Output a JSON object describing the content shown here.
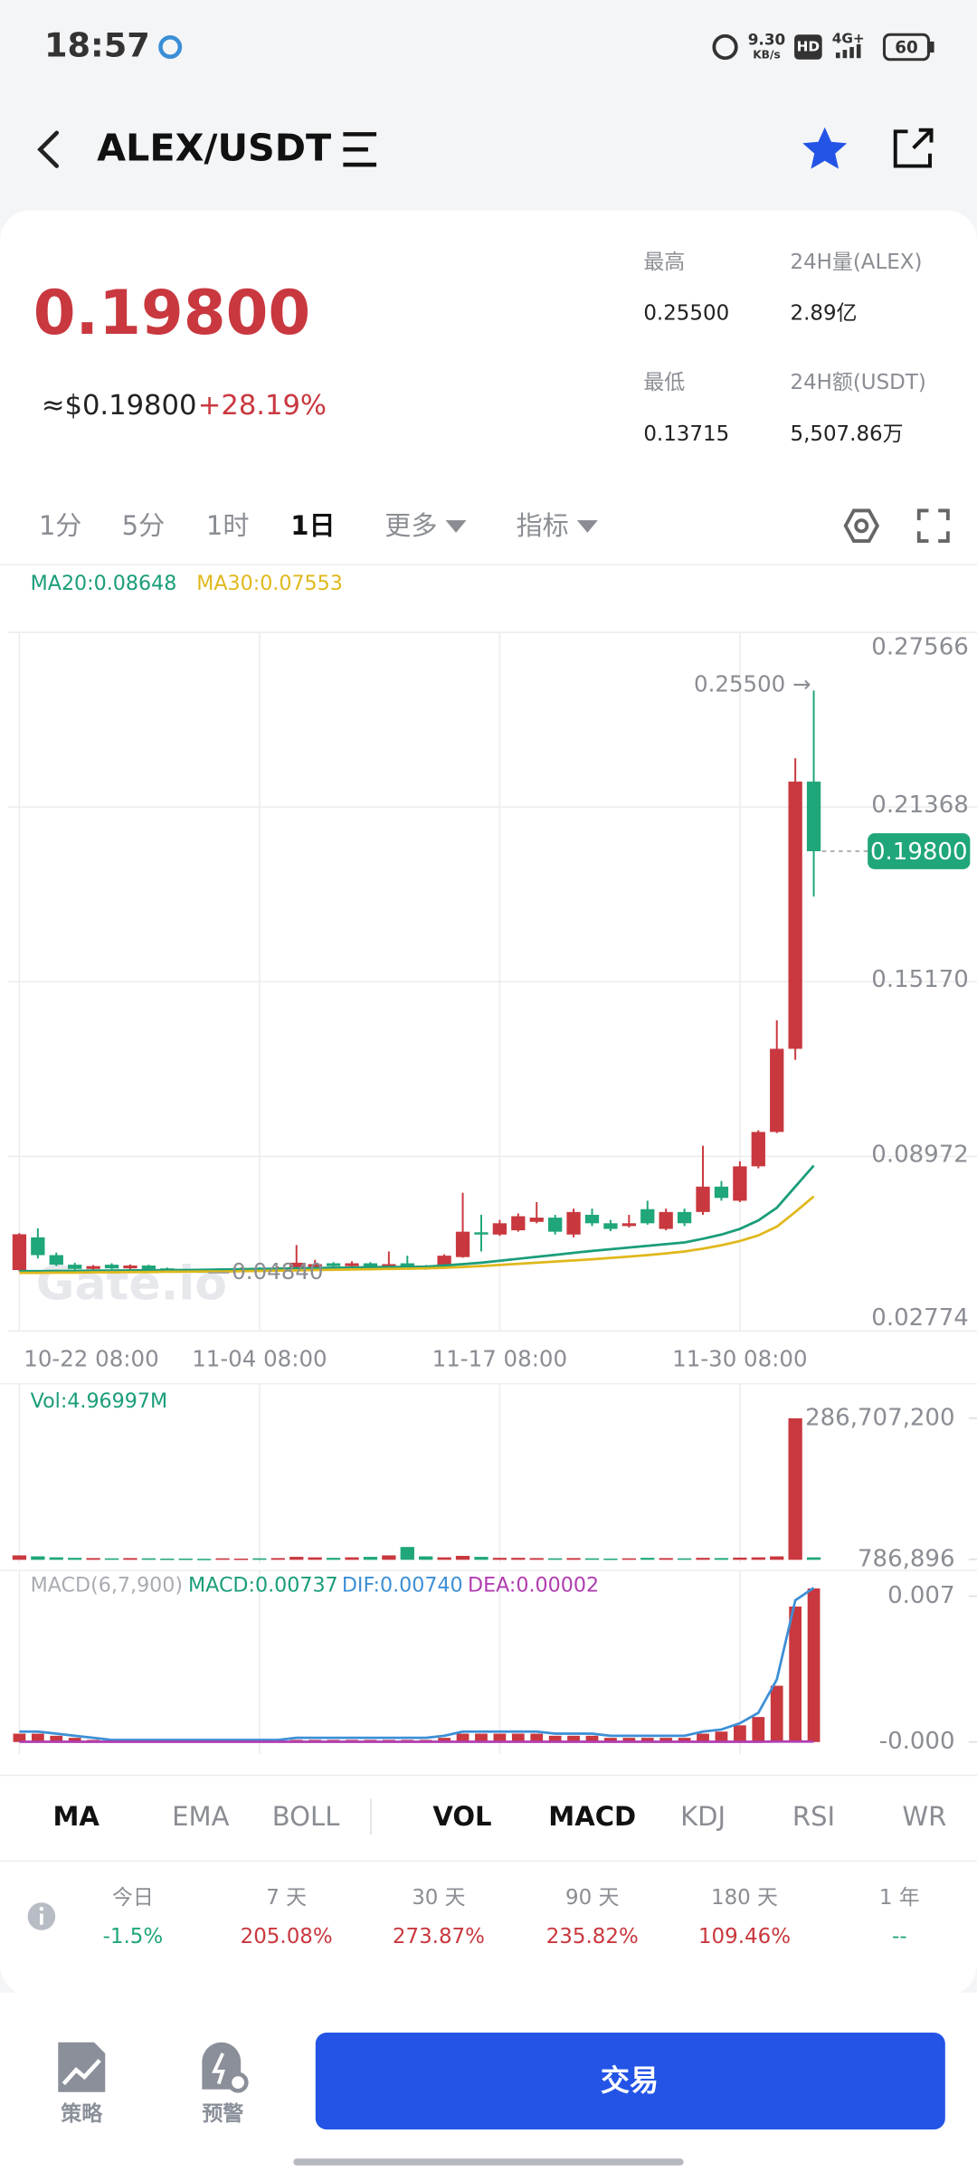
{
  "status_bar": {
    "time": "18:57",
    "speed": "9.30",
    "speed_unit": "KB/s",
    "hd": "HD",
    "network": "4G+",
    "battery": "60"
  },
  "header": {
    "pair": "ALEX/USDT"
  },
  "price": {
    "last": "0.19800",
    "usd": "≈$0.19800",
    "change": "+28.19%"
  },
  "stats": [
    {
      "label": "最高",
      "value": "0.25500"
    },
    {
      "label": "24H量(ALEX)",
      "value": "2.89亿"
    },
    {
      "label": "最低",
      "value": "0.13715"
    },
    {
      "label": "24H额(USDT)",
      "value": "5,507.86万"
    }
  ],
  "intervals": [
    "1分",
    "5分",
    "1时",
    "1日",
    "更多",
    "指标"
  ],
  "active_interval": 3,
  "watermark": "Gate.io",
  "chart_data": [
    {
      "type": "candlestick",
      "categories": [
        "10-22 08:00",
        null,
        null,
        null,
        null,
        null,
        null,
        null,
        null,
        null,
        null,
        null,
        null,
        "11-04 08:00",
        null,
        null,
        null,
        null,
        null,
        null,
        null,
        null,
        null,
        null,
        null,
        null,
        "11-17 08:00",
        null,
        null,
        null,
        null,
        null,
        null,
        null,
        null,
        null,
        null,
        null,
        null,
        "11-30 08:00",
        null,
        null,
        null,
        null
      ],
      "open": [
        0.0494,
        0.061,
        0.0547,
        0.0513,
        0.0498,
        0.0513,
        0.05,
        0.051,
        0.05,
        0.0495,
        0.049,
        0.0484,
        0.049,
        0.05,
        0.0492,
        0.05,
        0.0505,
        0.0518,
        0.0508,
        0.0518,
        0.0505,
        0.0518,
        0.0505,
        0.05,
        0.054,
        0.0628,
        0.062,
        0.0635,
        0.0665,
        0.068,
        0.062,
        0.069,
        0.066,
        0.065,
        0.071,
        0.064,
        0.07,
        0.07,
        0.079,
        0.074,
        0.0862,
        0.0984,
        0.1279,
        0.2227
      ],
      "high": [
        0.0625,
        0.0642,
        0.0556,
        0.052,
        0.0512,
        0.0518,
        0.0514,
        0.0513,
        0.0503,
        0.0498,
        0.0493,
        0.05,
        0.0503,
        0.0504,
        0.0506,
        0.0583,
        0.053,
        0.0522,
        0.0525,
        0.0522,
        0.056,
        0.0545,
        0.0512,
        0.055,
        0.0768,
        0.069,
        0.0672,
        0.0695,
        0.0735,
        0.069,
        0.0712,
        0.0712,
        0.0672,
        0.069,
        0.074,
        0.0712,
        0.0712,
        0.0935,
        0.081,
        0.088,
        0.099,
        0.138,
        0.231,
        0.255
      ],
      "low": [
        0.049,
        0.0535,
        0.0508,
        0.0494,
        0.0494,
        0.0497,
        0.0497,
        0.0492,
        0.0487,
        0.0485,
        0.0484,
        0.0484,
        0.0487,
        0.0489,
        0.049,
        0.0498,
        0.0502,
        0.0505,
        0.0505,
        0.0502,
        0.0502,
        0.05,
        0.0495,
        0.0498,
        0.0538,
        0.056,
        0.0615,
        0.063,
        0.066,
        0.062,
        0.061,
        0.065,
        0.0632,
        0.0645,
        0.0655,
        0.0635,
        0.065,
        0.069,
        0.074,
        0.0735,
        0.0855,
        0.098,
        0.124,
        0.1819
      ],
      "close": [
        0.0621,
        0.0547,
        0.0513,
        0.0498,
        0.0508,
        0.05,
        0.051,
        0.0495,
        0.049,
        0.0486,
        0.0484,
        0.0497,
        0.05,
        0.0492,
        0.0502,
        0.052,
        0.0515,
        0.0508,
        0.0518,
        0.0505,
        0.0515,
        0.0505,
        0.05,
        0.0545,
        0.063,
        0.062,
        0.066,
        0.0685,
        0.068,
        0.063,
        0.07,
        0.066,
        0.064,
        0.066,
        0.066,
        0.07,
        0.066,
        0.079,
        0.075,
        0.0862,
        0.0984,
        0.1279,
        0.2227,
        0.198
      ],
      "up_color": "#c9383f",
      "down_color": "#1fa67a",
      "ylim": [
        0.02774,
        0.27566
      ],
      "yticks": [
        0.27566,
        0.21368,
        {
          "value": 0.1517,
          "label": "0.15170"
        },
        0.08972,
        0.02774
      ],
      "grid": true,
      "series": [
        {
          "name": "MA20:0.08648",
          "color": "#1a9d7a",
          "values": [
            0.049,
            0.049,
            0.0491,
            0.0491,
            0.0492,
            0.0492,
            0.0493,
            0.0493,
            0.0494,
            0.0494,
            0.0495,
            0.0496,
            0.0497,
            0.0498,
            0.0499,
            0.05,
            0.0501,
            0.0502,
            0.0503,
            0.0504,
            0.0505,
            0.0505,
            0.0506,
            0.051,
            0.0515,
            0.052,
            0.0527,
            0.0534,
            0.0541,
            0.0548,
            0.0555,
            0.0562,
            0.0568,
            0.0574,
            0.058,
            0.0586,
            0.0592,
            0.0605,
            0.062,
            0.064,
            0.067,
            0.0715,
            0.079,
            0.08648
          ]
        },
        {
          "name": "MA30:0.07553",
          "color": "#e0b81c",
          "values": [
            0.0484,
            0.0484,
            0.0485,
            0.0485,
            0.0486,
            0.0486,
            0.0487,
            0.0487,
            0.0488,
            0.0488,
            0.0489,
            0.0489,
            0.049,
            0.0491,
            0.0492,
            0.0493,
            0.0494,
            0.0495,
            0.0496,
            0.0497,
            0.0498,
            0.0499,
            0.05,
            0.0502,
            0.0505,
            0.0508,
            0.0512,
            0.0516,
            0.052,
            0.0524,
            0.0528,
            0.0532,
            0.0537,
            0.0542,
            0.0547,
            0.0553,
            0.056,
            0.057,
            0.0582,
            0.0597,
            0.0617,
            0.0648,
            0.07,
            0.07553
          ]
        }
      ],
      "annotations": {
        "high": "0.25500 →",
        "low": "0.04840",
        "last": "0.19800"
      }
    },
    {
      "type": "bar",
      "title": "Vol:4.96997M",
      "title_color": "#1a9d7a",
      "values": [
        9000000,
        7000000,
        5000000,
        4000000,
        3500000,
        3000000,
        3500000,
        3000000,
        2500000,
        2500000,
        2000000,
        3000000,
        2500000,
        3000000,
        3500000,
        6000000,
        5000000,
        4000000,
        5000000,
        6000000,
        9000000,
        26000000,
        7000000,
        5000000,
        8000000,
        6000000,
        4000000,
        4000000,
        3500000,
        3000000,
        3500000,
        3000000,
        2500000,
        3000000,
        4000000,
        3500000,
        3000000,
        4000000,
        3500000,
        4500000,
        5000000,
        7000000,
        286707200,
        4969970
      ],
      "ylim": [
        -7600000,
        348400000
      ],
      "yticks": [
        {
          "value": 286707200,
          "label": "286,707,200"
        },
        {
          "value": 786896,
          "label": "786,896"
        }
      ]
    },
    {
      "type": "macd",
      "title": "MACD(6,7,900)",
      "name": "MACD:0.00737",
      "legend_color": "#1a9d7a",
      "color": "#c9383f",
      "values": [
        0.0004,
        0.0004,
        0.0003,
        0.0002,
        0.0001,
        0.0001,
        0.0001,
        0.0001,
        0.0001,
        0.0001,
        0.0001,
        0.0001,
        0.0001,
        0.0001,
        0.0001,
        0.0001,
        0.0001,
        0.0001,
        0.0001,
        0.0001,
        0.0001,
        0.0001,
        0.0001,
        0.0002,
        0.0004,
        0.0004,
        0.0004,
        0.0004,
        0.0004,
        0.0003,
        0.0003,
        0.0003,
        0.0002,
        0.0002,
        0.0002,
        0.0002,
        0.0002,
        0.0004,
        0.0005,
        0.0008,
        0.0012,
        0.0027,
        0.0065,
        0.00737
      ],
      "series": [
        {
          "name": "DIF:0.00740",
          "color": "#3d8fd6",
          "values": [
            0.0005,
            0.0005,
            0.0004,
            0.0003,
            0.0002,
            0.0001,
            0.0001,
            0.0001,
            0.0001,
            0.0001,
            0.0001,
            0.0001,
            0.0001,
            0.0001,
            0.0001,
            0.0002,
            0.0002,
            0.0002,
            0.0002,
            0.0002,
            0.0002,
            0.0002,
            0.0002,
            0.0003,
            0.0005,
            0.0005,
            0.0005,
            0.0005,
            0.0005,
            0.0004,
            0.0004,
            0.0004,
            0.0003,
            0.0003,
            0.0003,
            0.0003,
            0.0003,
            0.0005,
            0.0006,
            0.0009,
            0.0014,
            0.003,
            0.0068,
            0.0074
          ]
        },
        {
          "name": "DEA:0.00002",
          "color": "#b03db0",
          "values": [
            1e-05,
            1e-05,
            1e-05,
            1e-05,
            1e-05,
            1e-05,
            1e-05,
            1e-05,
            1e-05,
            1e-05,
            1e-05,
            1e-05,
            1e-05,
            1e-05,
            1e-05,
            1e-05,
            1e-05,
            1e-05,
            1e-05,
            1e-05,
            1e-05,
            1e-05,
            1e-05,
            1e-05,
            1e-05,
            1e-05,
            1e-05,
            1e-05,
            1e-05,
            1e-05,
            1e-05,
            1e-05,
            1e-05,
            1e-05,
            1e-05,
            1e-05,
            1e-05,
            1e-05,
            1e-05,
            1e-05,
            1e-05,
            2e-05,
            2e-05,
            2e-05
          ]
        }
      ],
      "ylim": [
        -0.0006,
        0.0079
      ],
      "yticks": [
        0.007,
        {
          "value": 0,
          "label": "-0.000"
        }
      ]
    }
  ],
  "indicator_tabs": [
    "MA",
    "EMA",
    "BOLL",
    "VOL",
    "MACD",
    "KDJ",
    "RSI",
    "WR"
  ],
  "active_tabs": [
    0,
    3,
    4
  ],
  "returns": [
    {
      "period": "今日",
      "value": "-1.5%",
      "color": "#1fa67a"
    },
    {
      "period": "7 天",
      "value": "205.08%",
      "color": "#c9383f"
    },
    {
      "period": "30 天",
      "value": "273.87%",
      "color": "#c9383f"
    },
    {
      "period": "90 天",
      "value": "235.82%",
      "color": "#c9383f"
    },
    {
      "period": "180 天",
      "value": "109.46%",
      "color": "#c9383f"
    },
    {
      "period": "1 年",
      "value": "--",
      "color": "#1fa67a"
    }
  ],
  "footer": {
    "strategy": "策略",
    "alert": "预警",
    "trade": "交易"
  }
}
